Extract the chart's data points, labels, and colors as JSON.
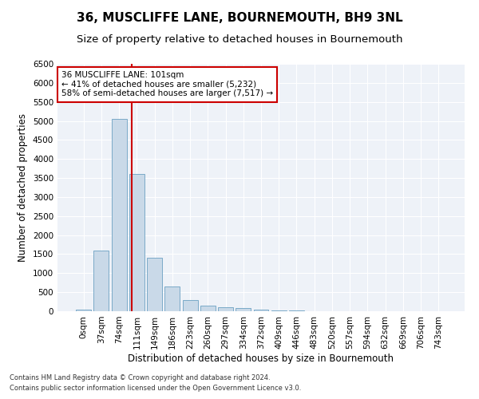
{
  "title": "36, MUSCLIFFE LANE, BOURNEMOUTH, BH9 3NL",
  "subtitle": "Size of property relative to detached houses in Bournemouth",
  "xlabel": "Distribution of detached houses by size in Bournemouth",
  "ylabel": "Number of detached properties",
  "bar_labels": [
    "0sqm",
    "37sqm",
    "74sqm",
    "111sqm",
    "149sqm",
    "186sqm",
    "223sqm",
    "260sqm",
    "297sqm",
    "334sqm",
    "372sqm",
    "409sqm",
    "446sqm",
    "483sqm",
    "520sqm",
    "557sqm",
    "594sqm",
    "632sqm",
    "669sqm",
    "706sqm",
    "743sqm"
  ],
  "bar_values": [
    50,
    1600,
    5050,
    3600,
    1400,
    650,
    300,
    150,
    100,
    75,
    50,
    30,
    15,
    5,
    2,
    1,
    1,
    0,
    0,
    0,
    0
  ],
  "bar_color": "#c9d9e8",
  "bar_edge_color": "#7aaac8",
  "vline_color": "#cc0000",
  "ylim": [
    0,
    6500
  ],
  "yticks": [
    0,
    500,
    1000,
    1500,
    2000,
    2500,
    3000,
    3500,
    4000,
    4500,
    5000,
    5500,
    6000,
    6500
  ],
  "annotation_line1": "36 MUSCLIFFE LANE: 101sqm",
  "annotation_line2": "← 41% of detached houses are smaller (5,232)",
  "annotation_line3": "58% of semi-detached houses are larger (7,517) →",
  "annotation_box_color": "#ffffff",
  "annotation_box_edge": "#cc0000",
  "footer1": "Contains HM Land Registry data © Crown copyright and database right 2024.",
  "footer2": "Contains public sector information licensed under the Open Government Licence v3.0.",
  "bg_color": "#ffffff",
  "plot_bg_color": "#eef2f8",
  "grid_color": "#ffffff",
  "title_fontsize": 11,
  "subtitle_fontsize": 9.5,
  "axis_label_fontsize": 8.5,
  "tick_fontsize": 7.5,
  "annotation_fontsize": 7.5
}
